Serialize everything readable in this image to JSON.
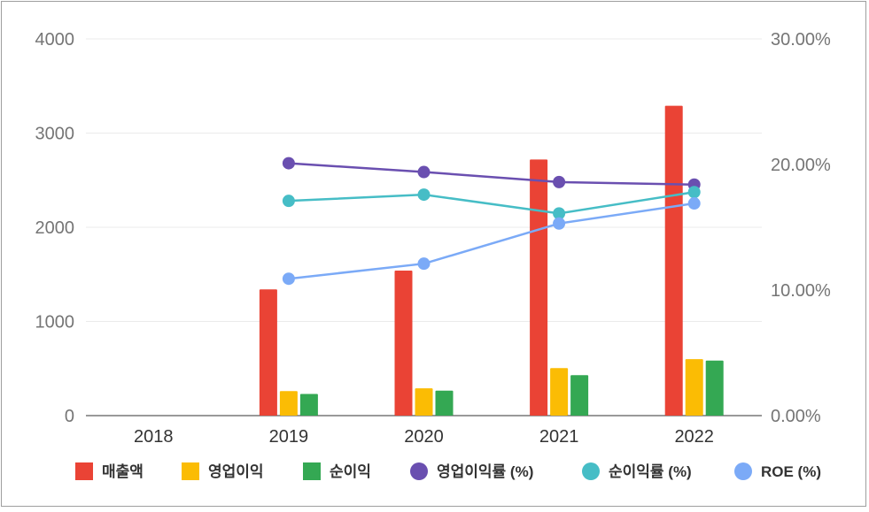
{
  "chart_data": {
    "type": "bar",
    "categories": [
      "2018",
      "2019",
      "2020",
      "2021",
      "2022"
    ],
    "left_axis": {
      "ticks": [
        "0",
        "1000",
        "2000",
        "3000",
        "4000"
      ],
      "ylim": [
        0,
        4000
      ]
    },
    "right_axis": {
      "ticks": [
        "0.00%",
        "10.00%",
        "20.00%",
        "30.00%"
      ],
      "ylim": [
        0,
        30
      ]
    },
    "bar_series": [
      {
        "name": "매출액",
        "color": "#ea4335",
        "values": [
          null,
          1340,
          1540,
          2720,
          3290
        ]
      },
      {
        "name": "영업이익",
        "color": "#fbbc04",
        "values": [
          null,
          260,
          290,
          505,
          600
        ]
      },
      {
        "name": "순이익",
        "color": "#34a853",
        "values": [
          null,
          230,
          265,
          430,
          585
        ]
      }
    ],
    "line_series": [
      {
        "name": "영업이익률 (%)",
        "color": "#6a4fb0",
        "values": [
          null,
          20.1,
          19.4,
          18.6,
          18.4
        ]
      },
      {
        "name": "순이익률 (%)",
        "color": "#46bdc6",
        "values": [
          null,
          17.1,
          17.6,
          16.1,
          17.8
        ]
      },
      {
        "name": "ROE (%)",
        "color": "#7baaf7",
        "values": [
          null,
          10.9,
          12.1,
          15.3,
          16.9
        ]
      }
    ],
    "grid": true,
    "legend_position": "bottom"
  }
}
